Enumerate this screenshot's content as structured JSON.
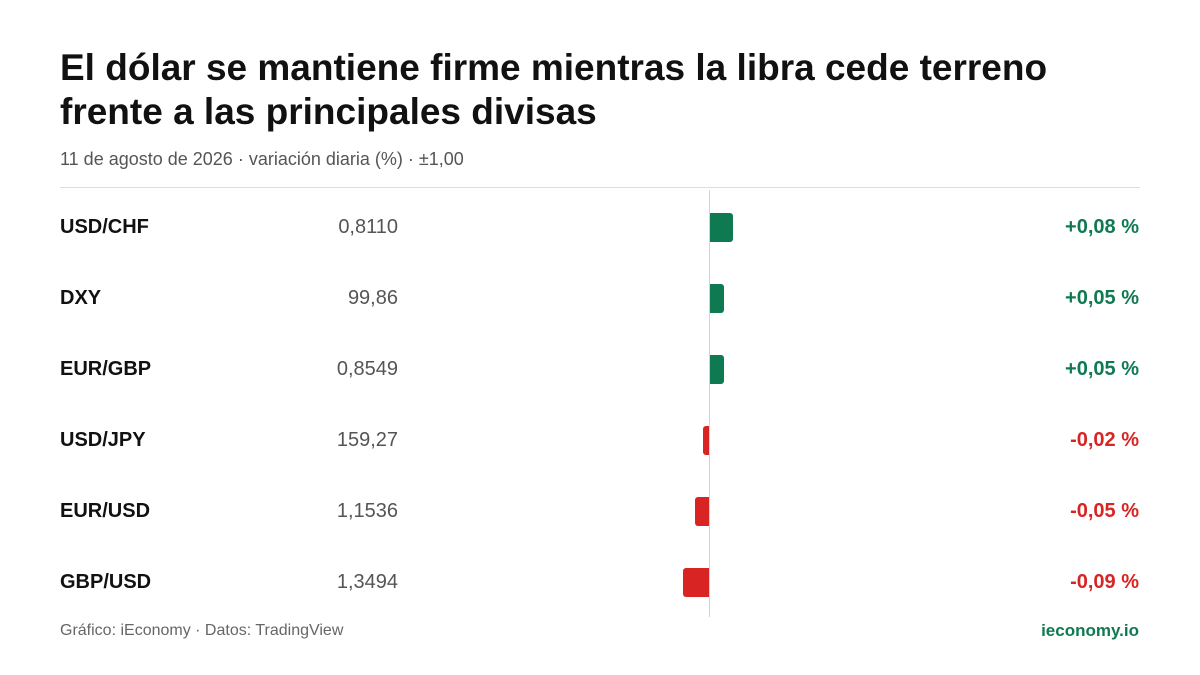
{
  "title": "El dólar se mantiene firme mientras la libra cede terreno frente a las principales divisas",
  "subtitle": "11 de agosto de 2026 · variación diaria (%) · ±1,00",
  "footer": {
    "source": "Gráfico: iEconomy · Datos: TradingView",
    "brand": "ieconomy.io"
  },
  "colors": {
    "positive": "#0f7a52",
    "negative": "#d92424",
    "positive_text": "#0f7a52",
    "negative_text": "#d92424"
  },
  "chart_data": {
    "type": "bar",
    "orientation": "horizontal-diverging",
    "scale_max_abs": 0.1,
    "categories": [
      "USD/CHF",
      "DXY",
      "EUR/GBP",
      "USD/JPY",
      "EUR/USD",
      "GBP/USD"
    ],
    "prices": [
      "0,8110",
      "99,86",
      "0,8549",
      "159,27",
      "1,1536",
      "1,3494"
    ],
    "values": [
      0.08,
      0.05,
      0.05,
      -0.02,
      -0.05,
      -0.09
    ],
    "value_labels": [
      "+0,08 %",
      "+0,05 %",
      "+0,05 %",
      "-0,02 %",
      "-0,05 %",
      "-0,09 %"
    ]
  }
}
